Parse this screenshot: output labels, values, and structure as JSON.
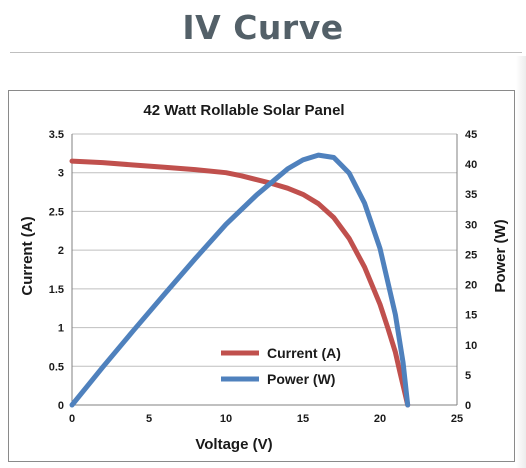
{
  "page": {
    "heading": "IV Curve"
  },
  "colors": {
    "heading": "#536068",
    "current_series": "#c0504d",
    "power_series": "#4f81bd",
    "grid": "#bfbfbf",
    "axis": "#808080"
  },
  "chart_data": {
    "type": "line",
    "title": "42 Watt Rollable Solar Panel",
    "xlabel": "Voltage (V)",
    "ylabel": "Current (A)",
    "y2label": "Power (W)",
    "xlim": [
      0,
      25
    ],
    "ylim": [
      0,
      3.5
    ],
    "y2lim": [
      0,
      45
    ],
    "x_ticks": [
      "0",
      "5",
      "10",
      "15",
      "20",
      "25"
    ],
    "y_ticks": [
      "0",
      "0.5",
      "1",
      "1.5",
      "2",
      "2.5",
      "3",
      "3.5"
    ],
    "y2_ticks": [
      "0",
      "5",
      "10",
      "15",
      "20",
      "25",
      "30",
      "35",
      "40",
      "45"
    ],
    "grid": true,
    "legend_position": "inside-bottom-center",
    "series": [
      {
        "name": "Current (A)",
        "axis": "left",
        "color": "#c0504d",
        "x": [
          0,
          2,
          4,
          6,
          8,
          10,
          11,
          12,
          13,
          14,
          15,
          16,
          17,
          18,
          19,
          20,
          20.5,
          21,
          21.3,
          21.6,
          21.8
        ],
        "y": [
          3.15,
          3.13,
          3.1,
          3.07,
          3.04,
          3.0,
          2.96,
          2.91,
          2.86,
          2.8,
          2.72,
          2.6,
          2.42,
          2.15,
          1.78,
          1.3,
          1.0,
          0.68,
          0.42,
          0.17,
          0.0
        ]
      },
      {
        "name": "Power (W)",
        "axis": "right",
        "color": "#4f81bd",
        "x": [
          0,
          2,
          4,
          6,
          8,
          10,
          12,
          14,
          15,
          16,
          17,
          17.5,
          18,
          19,
          20,
          21,
          21.5,
          21.8
        ],
        "y": [
          0,
          6.3,
          12.4,
          18.4,
          24.3,
          30.0,
          34.9,
          39.2,
          40.7,
          41.5,
          41.1,
          39.8,
          38.5,
          33.5,
          26.0,
          15.0,
          7.0,
          0.0
        ]
      }
    ]
  }
}
